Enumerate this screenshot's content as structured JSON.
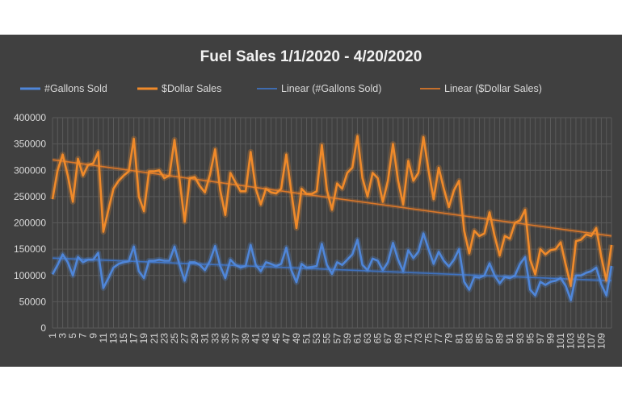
{
  "colors": {
    "background": "#404040",
    "gallons": "#4f86d9",
    "dollars": "#f08a2a",
    "gallons_trend": "#3f72c0",
    "dollars_trend": "#d9772a",
    "grid": "#5a5a5a",
    "text": "#d9d9d9"
  },
  "chart_data": {
    "type": "line",
    "title": "Fuel Sales 1/1/2020 - 4/20/2020",
    "xlabel": "",
    "ylabel": "",
    "ylim": [
      0,
      400000
    ],
    "yticks": [
      0,
      50000,
      100000,
      150000,
      200000,
      250000,
      300000,
      350000,
      400000
    ],
    "xlim": [
      1,
      111
    ],
    "xticks": [
      1,
      3,
      5,
      7,
      9,
      11,
      13,
      15,
      17,
      19,
      21,
      23,
      25,
      27,
      29,
      31,
      33,
      35,
      37,
      39,
      41,
      43,
      45,
      47,
      49,
      51,
      53,
      55,
      57,
      59,
      61,
      63,
      65,
      67,
      69,
      71,
      73,
      75,
      77,
      79,
      81,
      83,
      85,
      87,
      89,
      91,
      93,
      95,
      97,
      99,
      101,
      103,
      105,
      107,
      109
    ],
    "grid": true,
    "legend_position": "top",
    "series": [
      {
        "name": "#Gallons Sold",
        "style": "line",
        "color_key": "gallons",
        "values": [
          102000,
          120000,
          140000,
          125000,
          100000,
          135000,
          125000,
          130000,
          130000,
          143000,
          76000,
          95000,
          115000,
          122000,
          125000,
          127000,
          155000,
          108000,
          95000,
          128000,
          128000,
          130000,
          128000,
          128000,
          155000,
          120000,
          90000,
          125000,
          125000,
          120000,
          110000,
          128000,
          156000,
          118000,
          95000,
          130000,
          120000,
          115000,
          118000,
          158000,
          120000,
          108000,
          125000,
          122000,
          118000,
          122000,
          153000,
          110000,
          87000,
          122000,
          115000,
          116000,
          118000,
          160000,
          120000,
          103000,
          125000,
          120000,
          130000,
          140000,
          168000,
          120000,
          110000,
          132000,
          128000,
          110000,
          125000,
          162000,
          130000,
          108000,
          148000,
          133000,
          145000,
          180000,
          150000,
          122000,
          145000,
          128000,
          117000,
          130000,
          150000,
          88000,
          73000,
          97000,
          96000,
          100000,
          123000,
          100000,
          85000,
          97000,
          95000,
          100000,
          122000,
          135000,
          73000,
          62000,
          88000,
          82000,
          88000,
          90000,
          95000,
          80000,
          53000,
          100000,
          100000,
          105000,
          108000,
          115000,
          83000,
          62000,
          118000
        ]
      },
      {
        "name": "$Dollar Sales",
        "style": "line",
        "color_key": "dollars",
        "values": [
          245000,
          300000,
          330000,
          290000,
          240000,
          322000,
          290000,
          310000,
          313000,
          335000,
          183000,
          225000,
          265000,
          280000,
          290000,
          298000,
          360000,
          250000,
          222000,
          298000,
          298000,
          300000,
          285000,
          290000,
          358000,
          282000,
          202000,
          285000,
          287000,
          270000,
          258000,
          292000,
          340000,
          262000,
          215000,
          295000,
          277000,
          260000,
          260000,
          335000,
          265000,
          235000,
          265000,
          258000,
          256000,
          265000,
          330000,
          258000,
          190000,
          265000,
          255000,
          255000,
          260000,
          348000,
          262000,
          225000,
          275000,
          265000,
          295000,
          305000,
          365000,
          285000,
          250000,
          295000,
          285000,
          240000,
          280000,
          350000,
          280000,
          235000,
          318000,
          280000,
          295000,
          363000,
          300000,
          245000,
          305000,
          265000,
          230000,
          262000,
          280000,
          185000,
          142000,
          185000,
          175000,
          180000,
          220000,
          175000,
          138000,
          175000,
          170000,
          200000,
          205000,
          225000,
          130000,
          102000,
          150000,
          140000,
          148000,
          150000,
          163000,
          120000,
          80000,
          165000,
          168000,
          178000,
          175000,
          190000,
          135000,
          90000,
          158000
        ]
      },
      {
        "name": "Linear (#Gallons Sold)",
        "style": "trendline",
        "color_key": "gallons_trend",
        "x": [
          1,
          111
        ],
        "values": [
          133000,
          90000
        ]
      },
      {
        "name": "Linear ($Dollar Sales)",
        "style": "trendline",
        "color_key": "dollars_trend",
        "x": [
          1,
          111
        ],
        "values": [
          320000,
          175000
        ]
      }
    ]
  }
}
